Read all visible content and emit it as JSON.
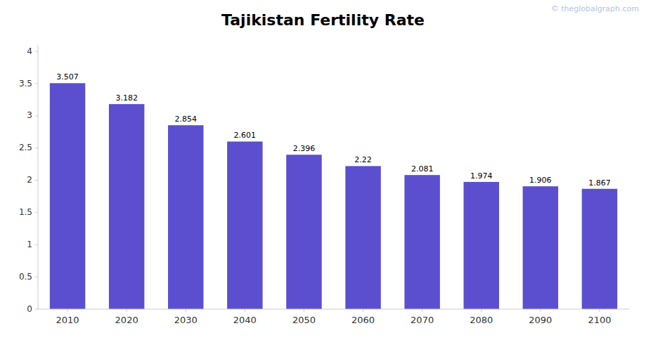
{
  "chart_data": {
    "type": "bar",
    "title": "Tajikistan Fertility Rate",
    "categories": [
      2010,
      2020,
      2030,
      2040,
      2050,
      2060,
      2070,
      2080,
      2090,
      2100
    ],
    "values": [
      3.507,
      3.182,
      2.854,
      2.601,
      2.396,
      2.22,
      2.081,
      1.974,
      1.906,
      1.867
    ],
    "color": "#5B4FCF",
    "ylim": [
      0,
      4.1
    ],
    "yticks": [
      0,
      0.5,
      1,
      1.5,
      2,
      2.5,
      3,
      3.5,
      4
    ],
    "grid": false,
    "data_labels": true,
    "annotations": [
      "© theglobalgraph.com"
    ]
  }
}
